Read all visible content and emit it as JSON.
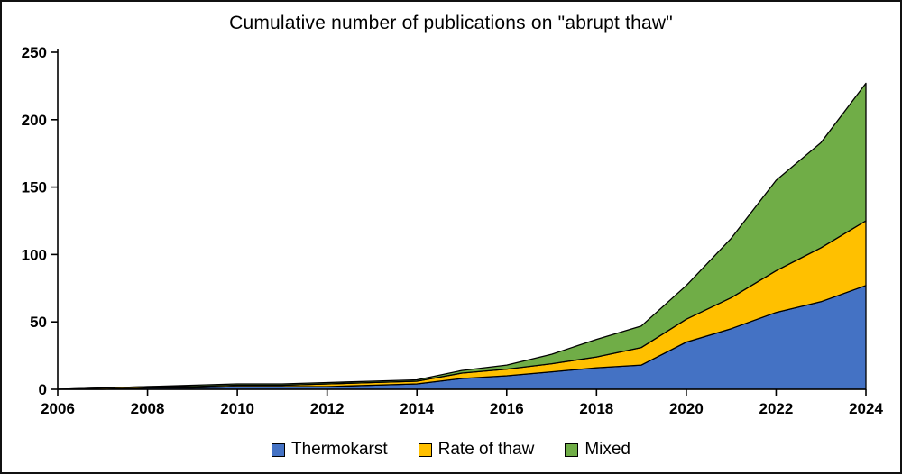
{
  "title": "Cumulative number of publications on \"abrupt thaw\"",
  "chart_data": {
    "type": "area",
    "stacked": true,
    "title": "Cumulative number of publications on \"abrupt thaw\"",
    "xlabel": "",
    "ylabel": "",
    "x": [
      2006,
      2007,
      2008,
      2009,
      2010,
      2011,
      2012,
      2013,
      2014,
      2015,
      2016,
      2017,
      2018,
      2019,
      2020,
      2021,
      2022,
      2023,
      2024
    ],
    "series": [
      {
        "name": "Thermokarst",
        "color": "#4472C4",
        "values": [
          0,
          0,
          1,
          1,
          2,
          2,
          2,
          3,
          4,
          8,
          10,
          13,
          16,
          18,
          35,
          45,
          57,
          65,
          77
        ]
      },
      {
        "name": "Rate of thaw",
        "color": "#FFC000",
        "values": [
          0,
          1,
          1,
          1,
          1,
          1,
          2,
          2,
          2,
          4,
          5,
          6,
          8,
          13,
          17,
          23,
          31,
          40,
          48
        ]
      },
      {
        "name": "Mixed",
        "color": "#70AD47",
        "values": [
          0,
          0,
          0,
          1,
          1,
          1,
          1,
          1,
          1,
          2,
          3,
          7,
          13,
          16,
          25,
          44,
          67,
          78,
          102
        ]
      }
    ],
    "totals": [
      0,
      1,
      2,
      3,
      4,
      4,
      5,
      6,
      7,
      14,
      18,
      26,
      37,
      47,
      77,
      112,
      155,
      183,
      227
    ],
    "ylim": [
      0,
      250
    ],
    "yticks": [
      0,
      50,
      100,
      150,
      200,
      250
    ],
    "xticks": [
      2006,
      2008,
      2010,
      2012,
      2014,
      2016,
      2018,
      2020,
      2022,
      2024
    ],
    "grid": false,
    "legend_position": "bottom",
    "outline_color": "#000000"
  }
}
